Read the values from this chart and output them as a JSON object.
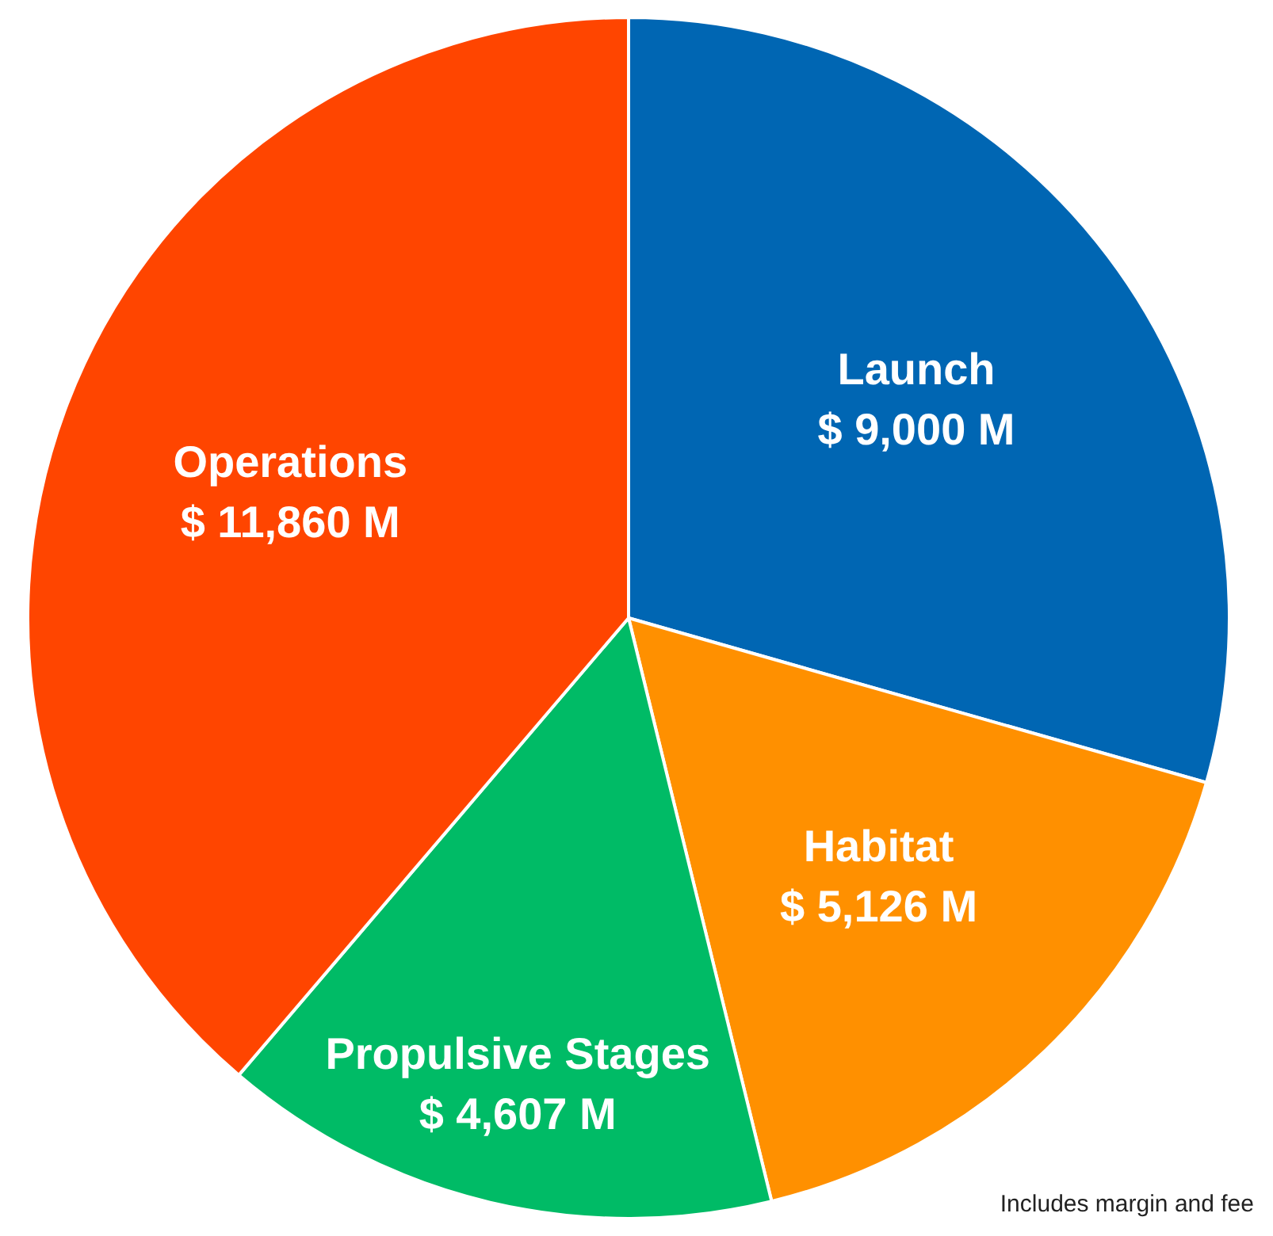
{
  "chart_data": {
    "type": "pie",
    "categories": [
      "Launch",
      "Habitat",
      "Propulsive Stages",
      "Operations"
    ],
    "values": [
      9000,
      5126,
      4607,
      11860
    ],
    "value_labels": [
      "$ 9,000 M",
      "$ 5,126 M",
      "$ 4,607 M",
      "$ 11,860 M"
    ],
    "colors": [
      "#0066b3",
      "#ff9000",
      "#00bb66",
      "#ff4500"
    ],
    "annotations": [
      "Includes margin and fee"
    ],
    "legend": false
  }
}
